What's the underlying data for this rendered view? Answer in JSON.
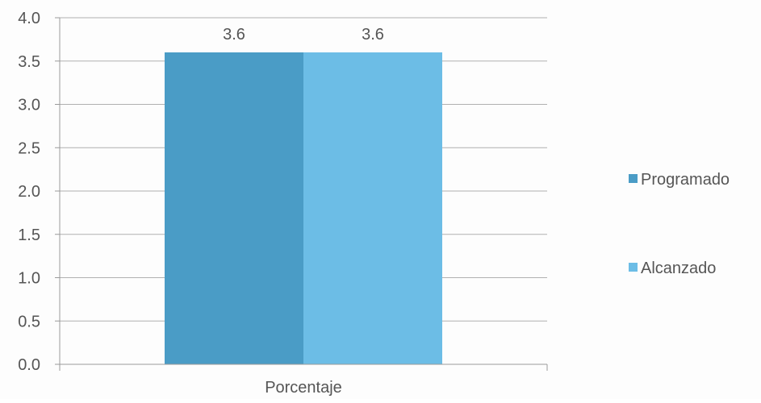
{
  "chart_data": {
    "type": "bar",
    "categories": [
      "Porcentaje"
    ],
    "series": [
      {
        "name": "Programado",
        "values": [
          3.6
        ],
        "color": "#4a9cc6"
      },
      {
        "name": "Alcanzado",
        "values": [
          3.6
        ],
        "color": "#6cbde6"
      }
    ],
    "data_labels": [
      "3.6",
      "3.6"
    ],
    "title": "",
    "xlabel": "",
    "ylabel": "",
    "ylim": [
      0,
      4.0
    ],
    "y_ticks": [
      "0.0",
      "0.5",
      "1.0",
      "1.5",
      "2.0",
      "2.5",
      "3.0",
      "3.5",
      "4.0"
    ],
    "grid": true,
    "legend_position": "right",
    "colors": {
      "axis": "#9a9a9a",
      "grid": "#b0b0b0",
      "text": "#555555"
    }
  }
}
